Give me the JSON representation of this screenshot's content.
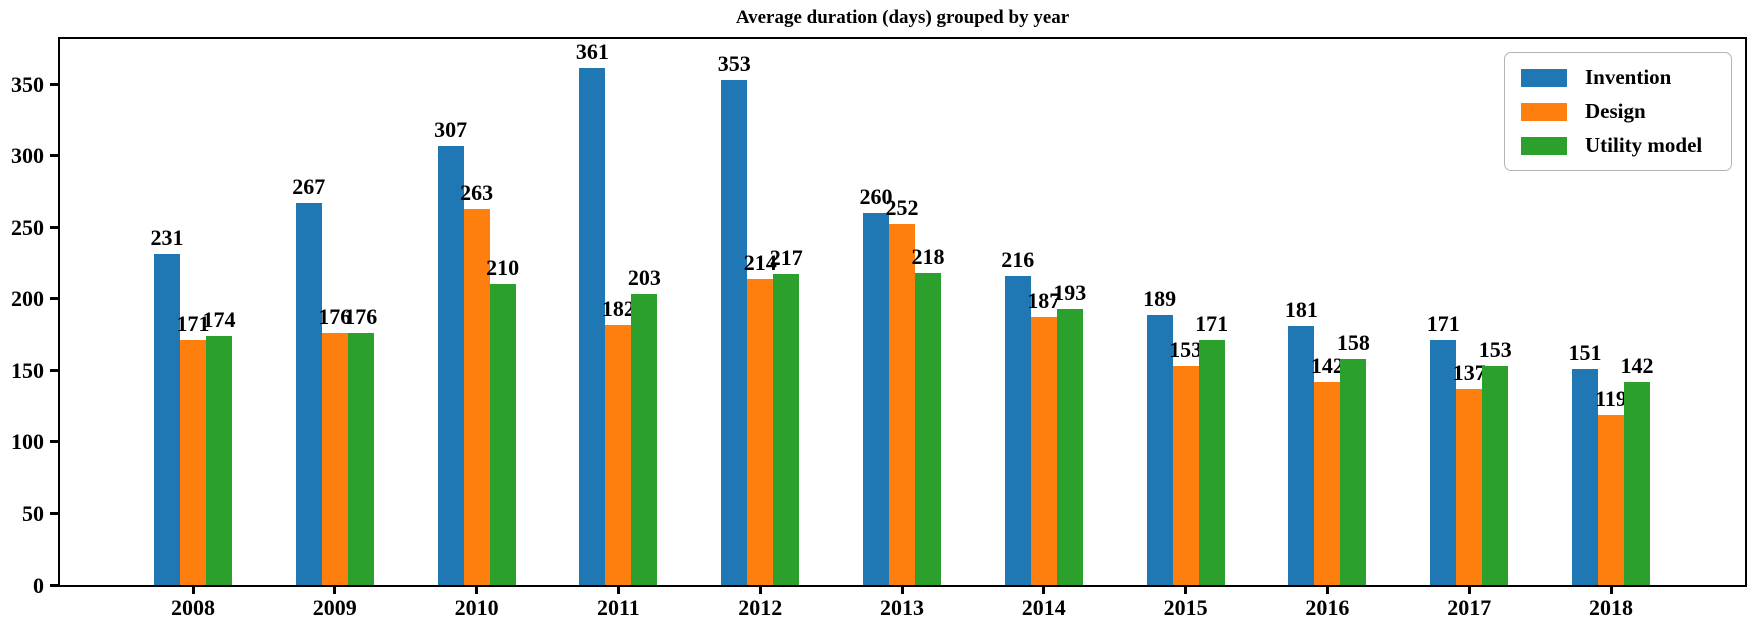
{
  "chart_data": {
    "type": "bar",
    "title": "Average duration (days) grouped by year",
    "categories": [
      "2008",
      "2009",
      "2010",
      "2011",
      "2012",
      "2013",
      "2014",
      "2015",
      "2016",
      "2017",
      "2018"
    ],
    "series": [
      {
        "name": "Invention",
        "color": "#1f77b4",
        "values": [
          231,
          267,
          307,
          361,
          353,
          260,
          216,
          189,
          181,
          171,
          151
        ]
      },
      {
        "name": "Design",
        "color": "#ff7f0e",
        "values": [
          171,
          176,
          263,
          182,
          214,
          252,
          187,
          153,
          142,
          137,
          119
        ]
      },
      {
        "name": "Utility model",
        "color": "#2ca02c",
        "values": [
          174,
          176,
          210,
          203,
          217,
          218,
          193,
          171,
          158,
          153,
          142
        ]
      }
    ],
    "xlabel": "",
    "ylabel": "",
    "yticks": [
      0,
      50,
      100,
      150,
      200,
      250,
      300,
      350
    ],
    "ylim": [
      0,
      381.5
    ],
    "legend_position": "upper right",
    "grid": false,
    "bar_value_labels": true,
    "axis_color": "#000000",
    "background_color": "#ffffff"
  }
}
